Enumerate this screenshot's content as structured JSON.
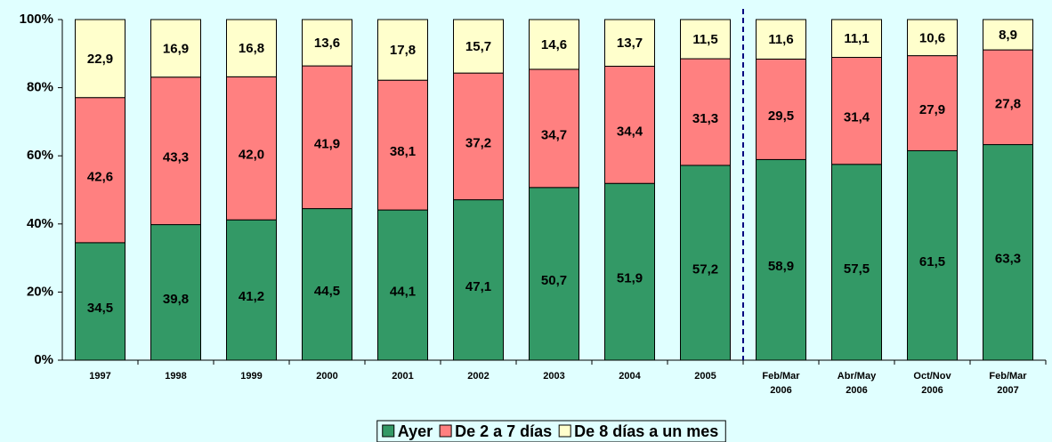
{
  "chart_data": {
    "type": "stacked_bar",
    "categories": [
      "1997",
      "1998",
      "1999",
      "2000",
      "2001",
      "2002",
      "2003",
      "2004",
      "2005",
      "Feb/Mar 2006",
      "Abr/May 2006",
      "Oct/Nov 2006",
      "Feb/Mar 2007"
    ],
    "series": [
      {
        "name": "Ayer",
        "color": "#339966",
        "values": [
          34.5,
          39.8,
          41.2,
          44.5,
          44.1,
          47.1,
          50.7,
          51.9,
          57.2,
          58.9,
          57.5,
          61.5,
          63.3
        ],
        "value_labels": [
          "34,5",
          "39,8",
          "41,2",
          "44,5",
          "44,1",
          "47,1",
          "50,7",
          "51,9",
          "57,2",
          "58,9",
          "57,5",
          "61,5",
          "63,3"
        ]
      },
      {
        "name": "De 2 a 7 días",
        "color": "#ff8080",
        "values": [
          42.6,
          43.3,
          42.0,
          41.9,
          38.1,
          37.2,
          34.7,
          34.4,
          31.3,
          29.5,
          31.4,
          27.9,
          27.8
        ],
        "value_labels": [
          "42,6",
          "43,3",
          "42,0",
          "41,9",
          "38,1",
          "37,2",
          "34,7",
          "34,4",
          "31,3",
          "29,5",
          "31,4",
          "27,9",
          "27,8"
        ]
      },
      {
        "name": "De 8 días a un mes",
        "color": "#ffffcc",
        "values": [
          22.9,
          16.9,
          16.8,
          13.6,
          17.8,
          15.7,
          14.6,
          13.7,
          11.5,
          11.6,
          11.1,
          10.6,
          8.9
        ],
        "value_labels": [
          "22,9",
          "16,9",
          "16,8",
          "13,6",
          "17,8",
          "15,7",
          "14,6",
          "13,7",
          "11,5",
          "11,6",
          "11,1",
          "10,6",
          "8,9"
        ]
      }
    ],
    "ylim": [
      0,
      100
    ],
    "yticks": [
      {
        "value": 0,
        "label": "0%"
      },
      {
        "value": 20,
        "label": "20%"
      },
      {
        "value": 40,
        "label": "40%"
      },
      {
        "value": 60,
        "label": "60%"
      },
      {
        "value": 80,
        "label": "80%"
      },
      {
        "value": 100,
        "label": "100%"
      }
    ],
    "legend": "bottom"
  }
}
